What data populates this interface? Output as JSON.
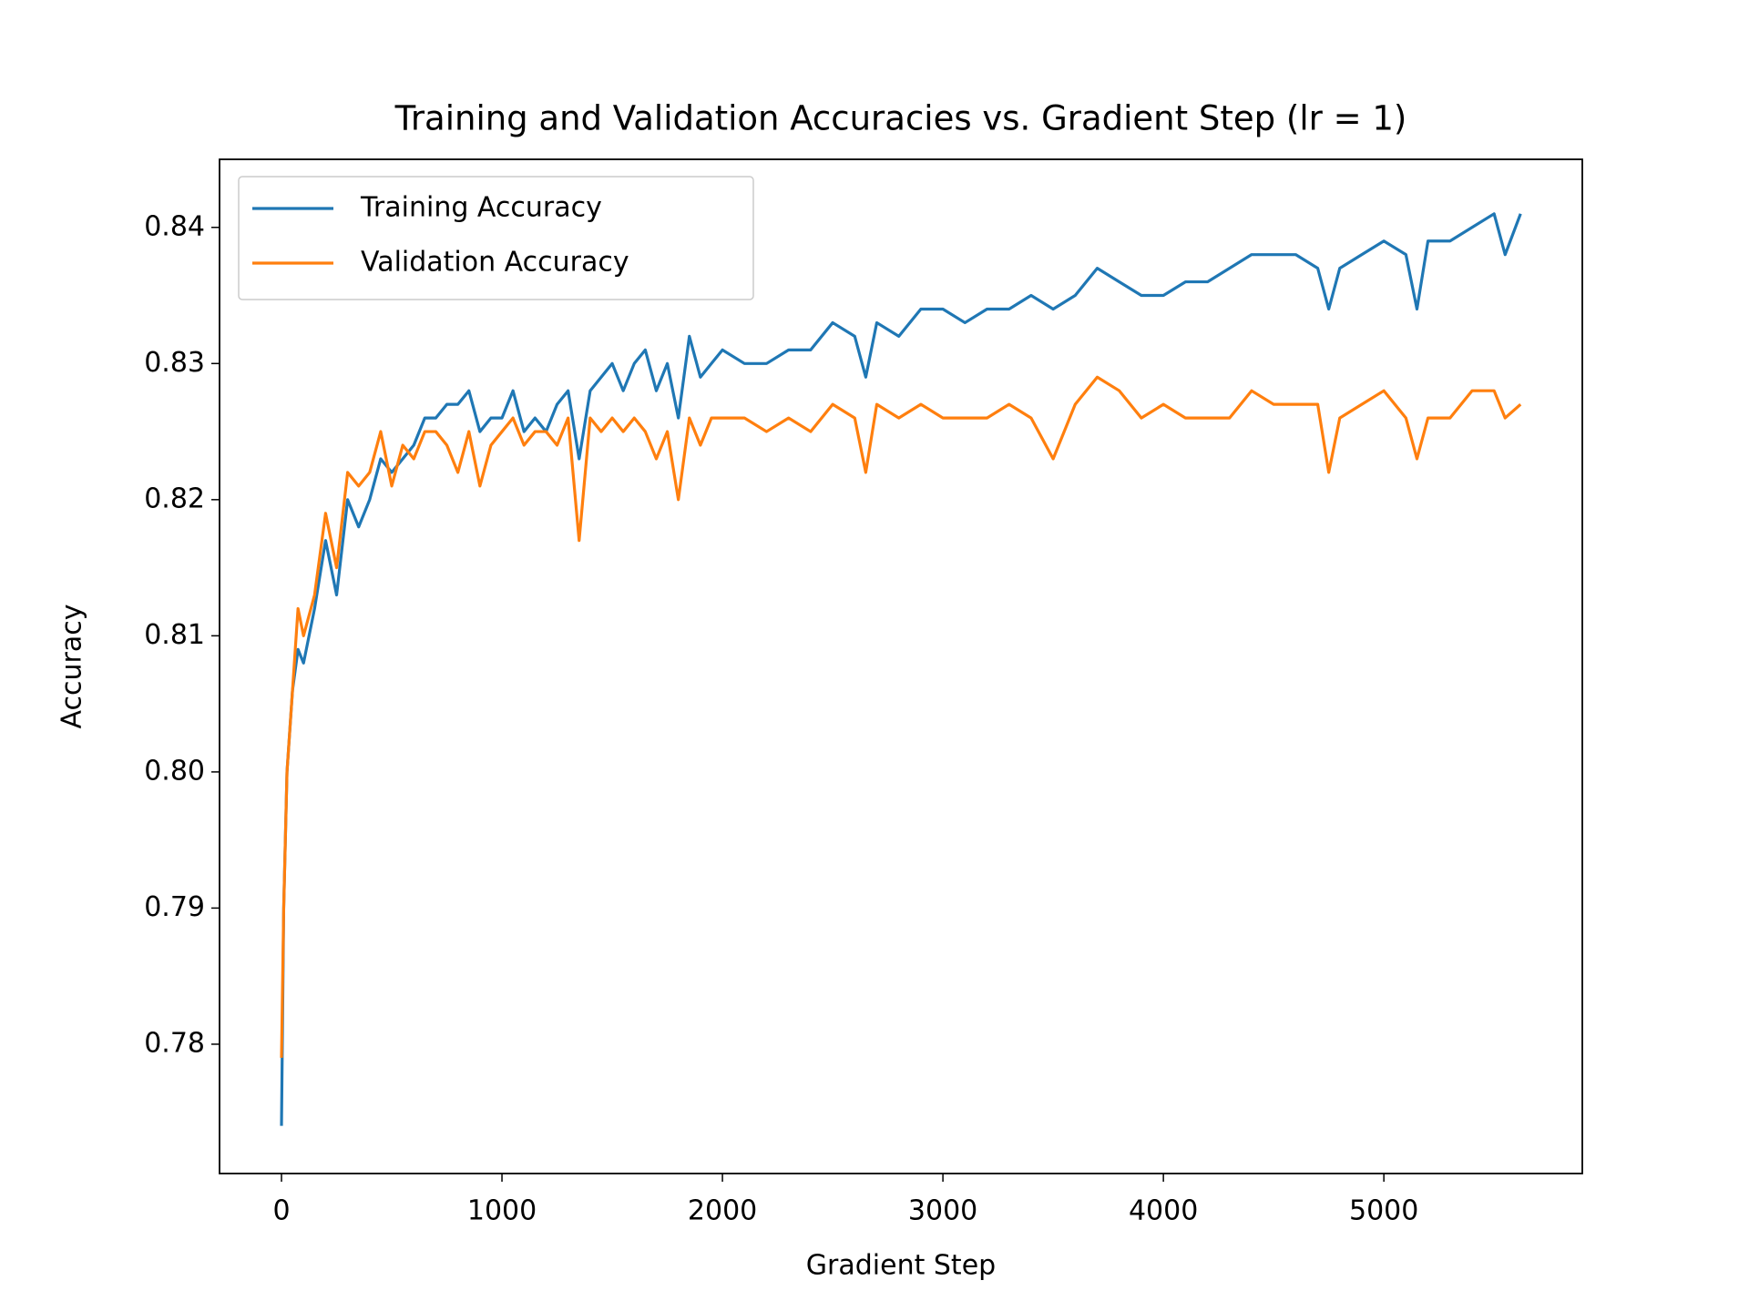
{
  "chart_data": {
    "type": "line",
    "title": "Training and Validation Accuracies vs. Gradient Step (lr = 1)",
    "x_label": "Gradient Step",
    "y_label": "Accuracy",
    "x": [
      0,
      10,
      25,
      50,
      75,
      100,
      150,
      200,
      250,
      300,
      350,
      400,
      450,
      500,
      550,
      600,
      650,
      700,
      750,
      800,
      850,
      900,
      950,
      1000,
      1050,
      1100,
      1150,
      1200,
      1250,
      1300,
      1350,
      1400,
      1450,
      1500,
      1550,
      1600,
      1650,
      1700,
      1750,
      1800,
      1850,
      1900,
      1950,
      2000,
      2100,
      2200,
      2300,
      2400,
      2500,
      2600,
      2650,
      2700,
      2800,
      2900,
      3000,
      3100,
      3200,
      3300,
      3400,
      3500,
      3600,
      3700,
      3800,
      3900,
      4000,
      4100,
      4200,
      4300,
      4400,
      4500,
      4600,
      4700,
      4750,
      4800,
      4900,
      5000,
      5100,
      5150,
      5200,
      5300,
      5400,
      5500,
      5550,
      5620
    ],
    "series": [
      {
        "name": "Training Accuracy",
        "color": "#1f77b4",
        "values": [
          0.774,
          0.79,
          0.8,
          0.806,
          0.809,
          0.808,
          0.812,
          0.817,
          0.813,
          0.82,
          0.818,
          0.82,
          0.823,
          0.822,
          0.823,
          0.824,
          0.826,
          0.826,
          0.827,
          0.827,
          0.828,
          0.825,
          0.826,
          0.826,
          0.828,
          0.825,
          0.826,
          0.825,
          0.827,
          0.828,
          0.823,
          0.828,
          0.829,
          0.83,
          0.828,
          0.83,
          0.831,
          0.828,
          0.83,
          0.826,
          0.832,
          0.829,
          0.83,
          0.831,
          0.83,
          0.83,
          0.831,
          0.831,
          0.833,
          0.832,
          0.829,
          0.833,
          0.832,
          0.834,
          0.834,
          0.833,
          0.834,
          0.834,
          0.835,
          0.834,
          0.835,
          0.837,
          0.836,
          0.835,
          0.835,
          0.836,
          0.836,
          0.837,
          0.838,
          0.838,
          0.838,
          0.837,
          0.834,
          0.837,
          0.838,
          0.839,
          0.838,
          0.834,
          0.839,
          0.839,
          0.84,
          0.841,
          0.838,
          0.841
        ]
      },
      {
        "name": "Validation Accuracy",
        "color": "#ff7f0e",
        "values": [
          0.779,
          0.79,
          0.8,
          0.806,
          0.812,
          0.81,
          0.813,
          0.819,
          0.815,
          0.822,
          0.821,
          0.822,
          0.825,
          0.821,
          0.824,
          0.823,
          0.825,
          0.825,
          0.824,
          0.822,
          0.825,
          0.821,
          0.824,
          0.825,
          0.826,
          0.824,
          0.825,
          0.825,
          0.824,
          0.826,
          0.817,
          0.826,
          0.825,
          0.826,
          0.825,
          0.826,
          0.825,
          0.823,
          0.825,
          0.82,
          0.826,
          0.824,
          0.826,
          0.826,
          0.826,
          0.825,
          0.826,
          0.825,
          0.827,
          0.826,
          0.822,
          0.827,
          0.826,
          0.827,
          0.826,
          0.826,
          0.826,
          0.827,
          0.826,
          0.823,
          0.827,
          0.829,
          0.828,
          0.826,
          0.827,
          0.826,
          0.826,
          0.826,
          0.828,
          0.827,
          0.827,
          0.827,
          0.822,
          0.826,
          0.827,
          0.828,
          0.826,
          0.823,
          0.826,
          0.826,
          0.828,
          0.828,
          0.826,
          0.827
        ]
      }
    ],
    "xlim": [
      -281,
      5900
    ],
    "ylim": [
      0.7705,
      0.845
    ],
    "xticks": [
      0,
      1000,
      2000,
      3000,
      4000,
      5000
    ],
    "yticks": [
      0.78,
      0.79,
      {
        "value": 0.8,
        "label": "0.80"
      },
      0.81,
      0.82,
      0.83,
      0.84
    ],
    "grid": false,
    "legend": "upper left"
  }
}
